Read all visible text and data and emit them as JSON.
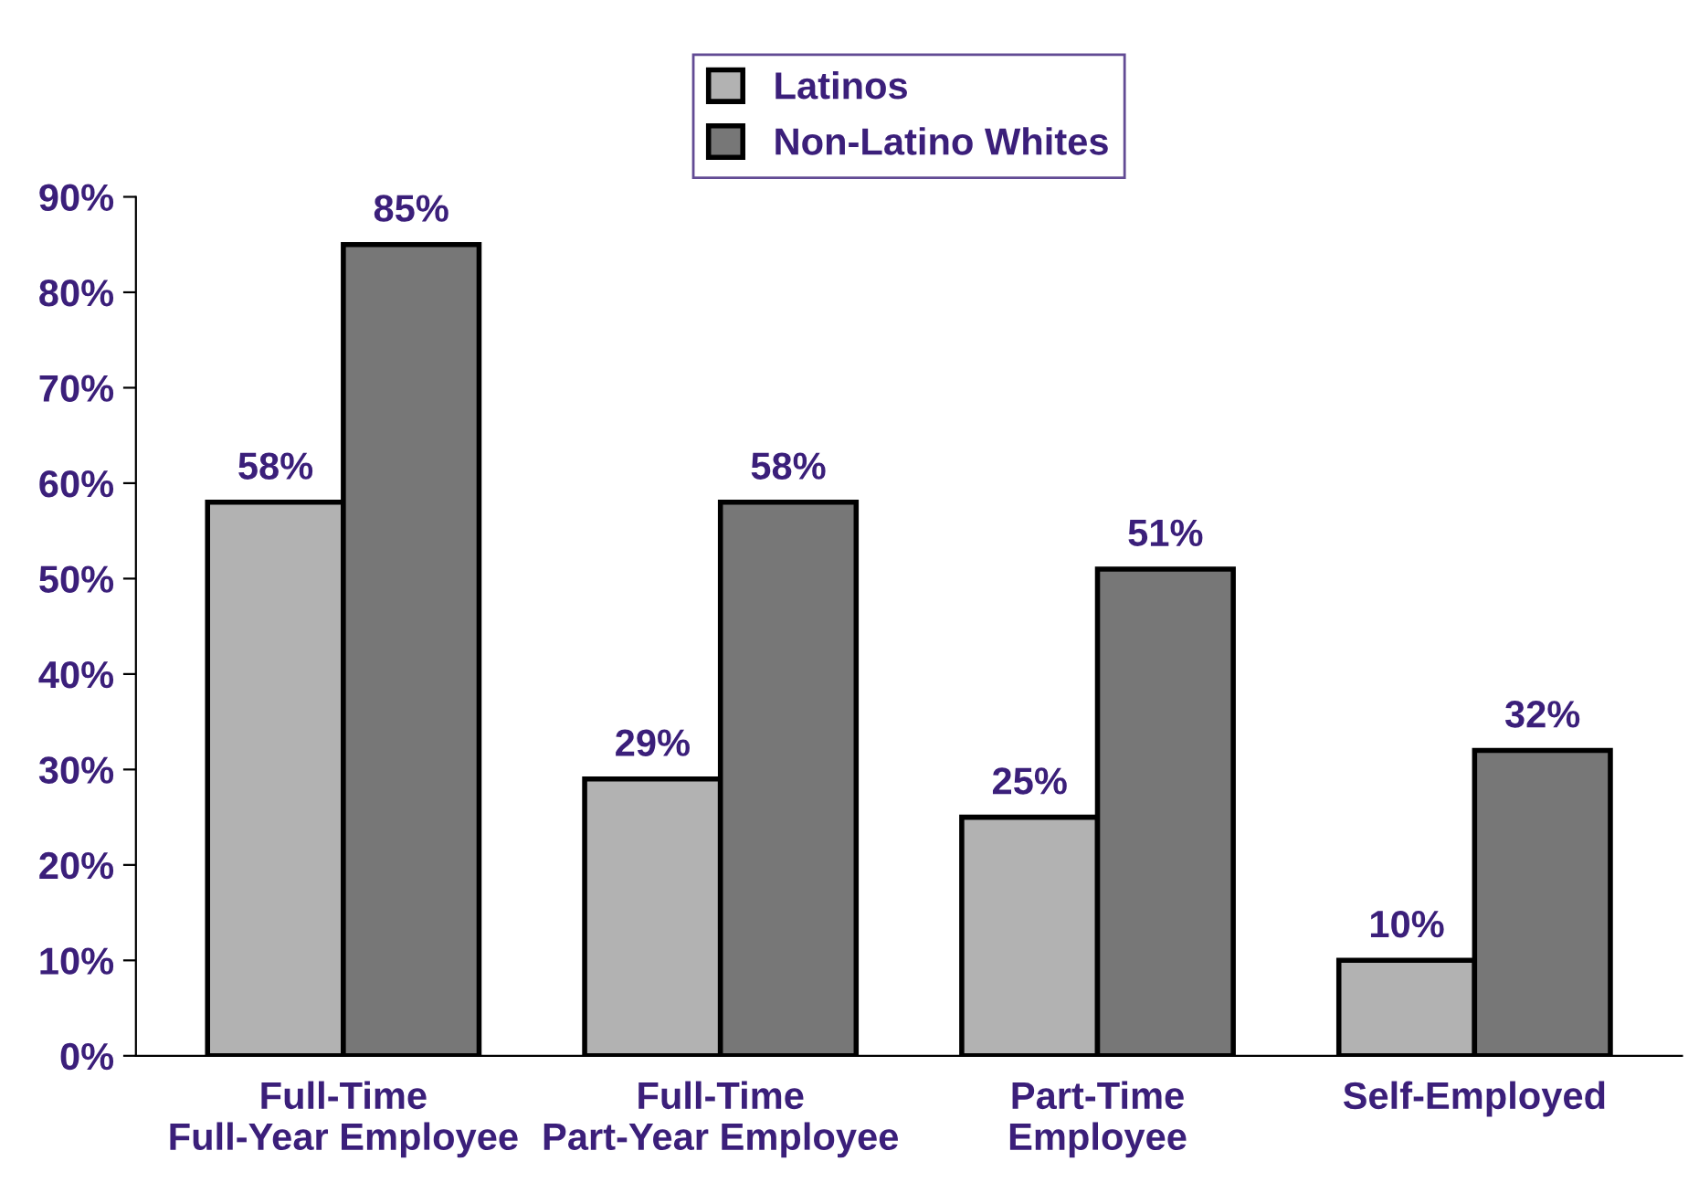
{
  "chart_data": {
    "type": "bar",
    "categories": [
      "Full-Time Full-Year Employee",
      "Full-Time Part-Year Employee",
      "Part-Time Employee",
      "Self-Employed"
    ],
    "series": [
      {
        "name": "Latinos",
        "color": "#b2b2b2",
        "values": [
          58,
          29,
          25,
          10
        ],
        "value_labels": [
          "58%",
          "29%",
          "25%",
          "10%"
        ]
      },
      {
        "name": "Non-Latino Whites",
        "color": "#777777",
        "values": [
          85,
          58,
          51,
          32
        ],
        "value_labels": [
          "85%",
          "58%",
          "51%",
          "32%"
        ]
      }
    ],
    "ylim": [
      0,
      90
    ],
    "yticks": [
      {
        "value": 0,
        "label": "0%"
      },
      {
        "value": 10,
        "label": "10%"
      },
      {
        "value": 20,
        "label": "20%"
      },
      {
        "value": 30,
        "label": "30%"
      },
      {
        "value": 40,
        "label": "40%"
      },
      {
        "value": 50,
        "label": "50%"
      },
      {
        "value": 60,
        "label": "60%"
      },
      {
        "value": 70,
        "label": "70%"
      },
      {
        "value": 80,
        "label": "80%"
      },
      {
        "value": 90,
        "label": "90%"
      }
    ],
    "grid": false,
    "legend": "top"
  }
}
